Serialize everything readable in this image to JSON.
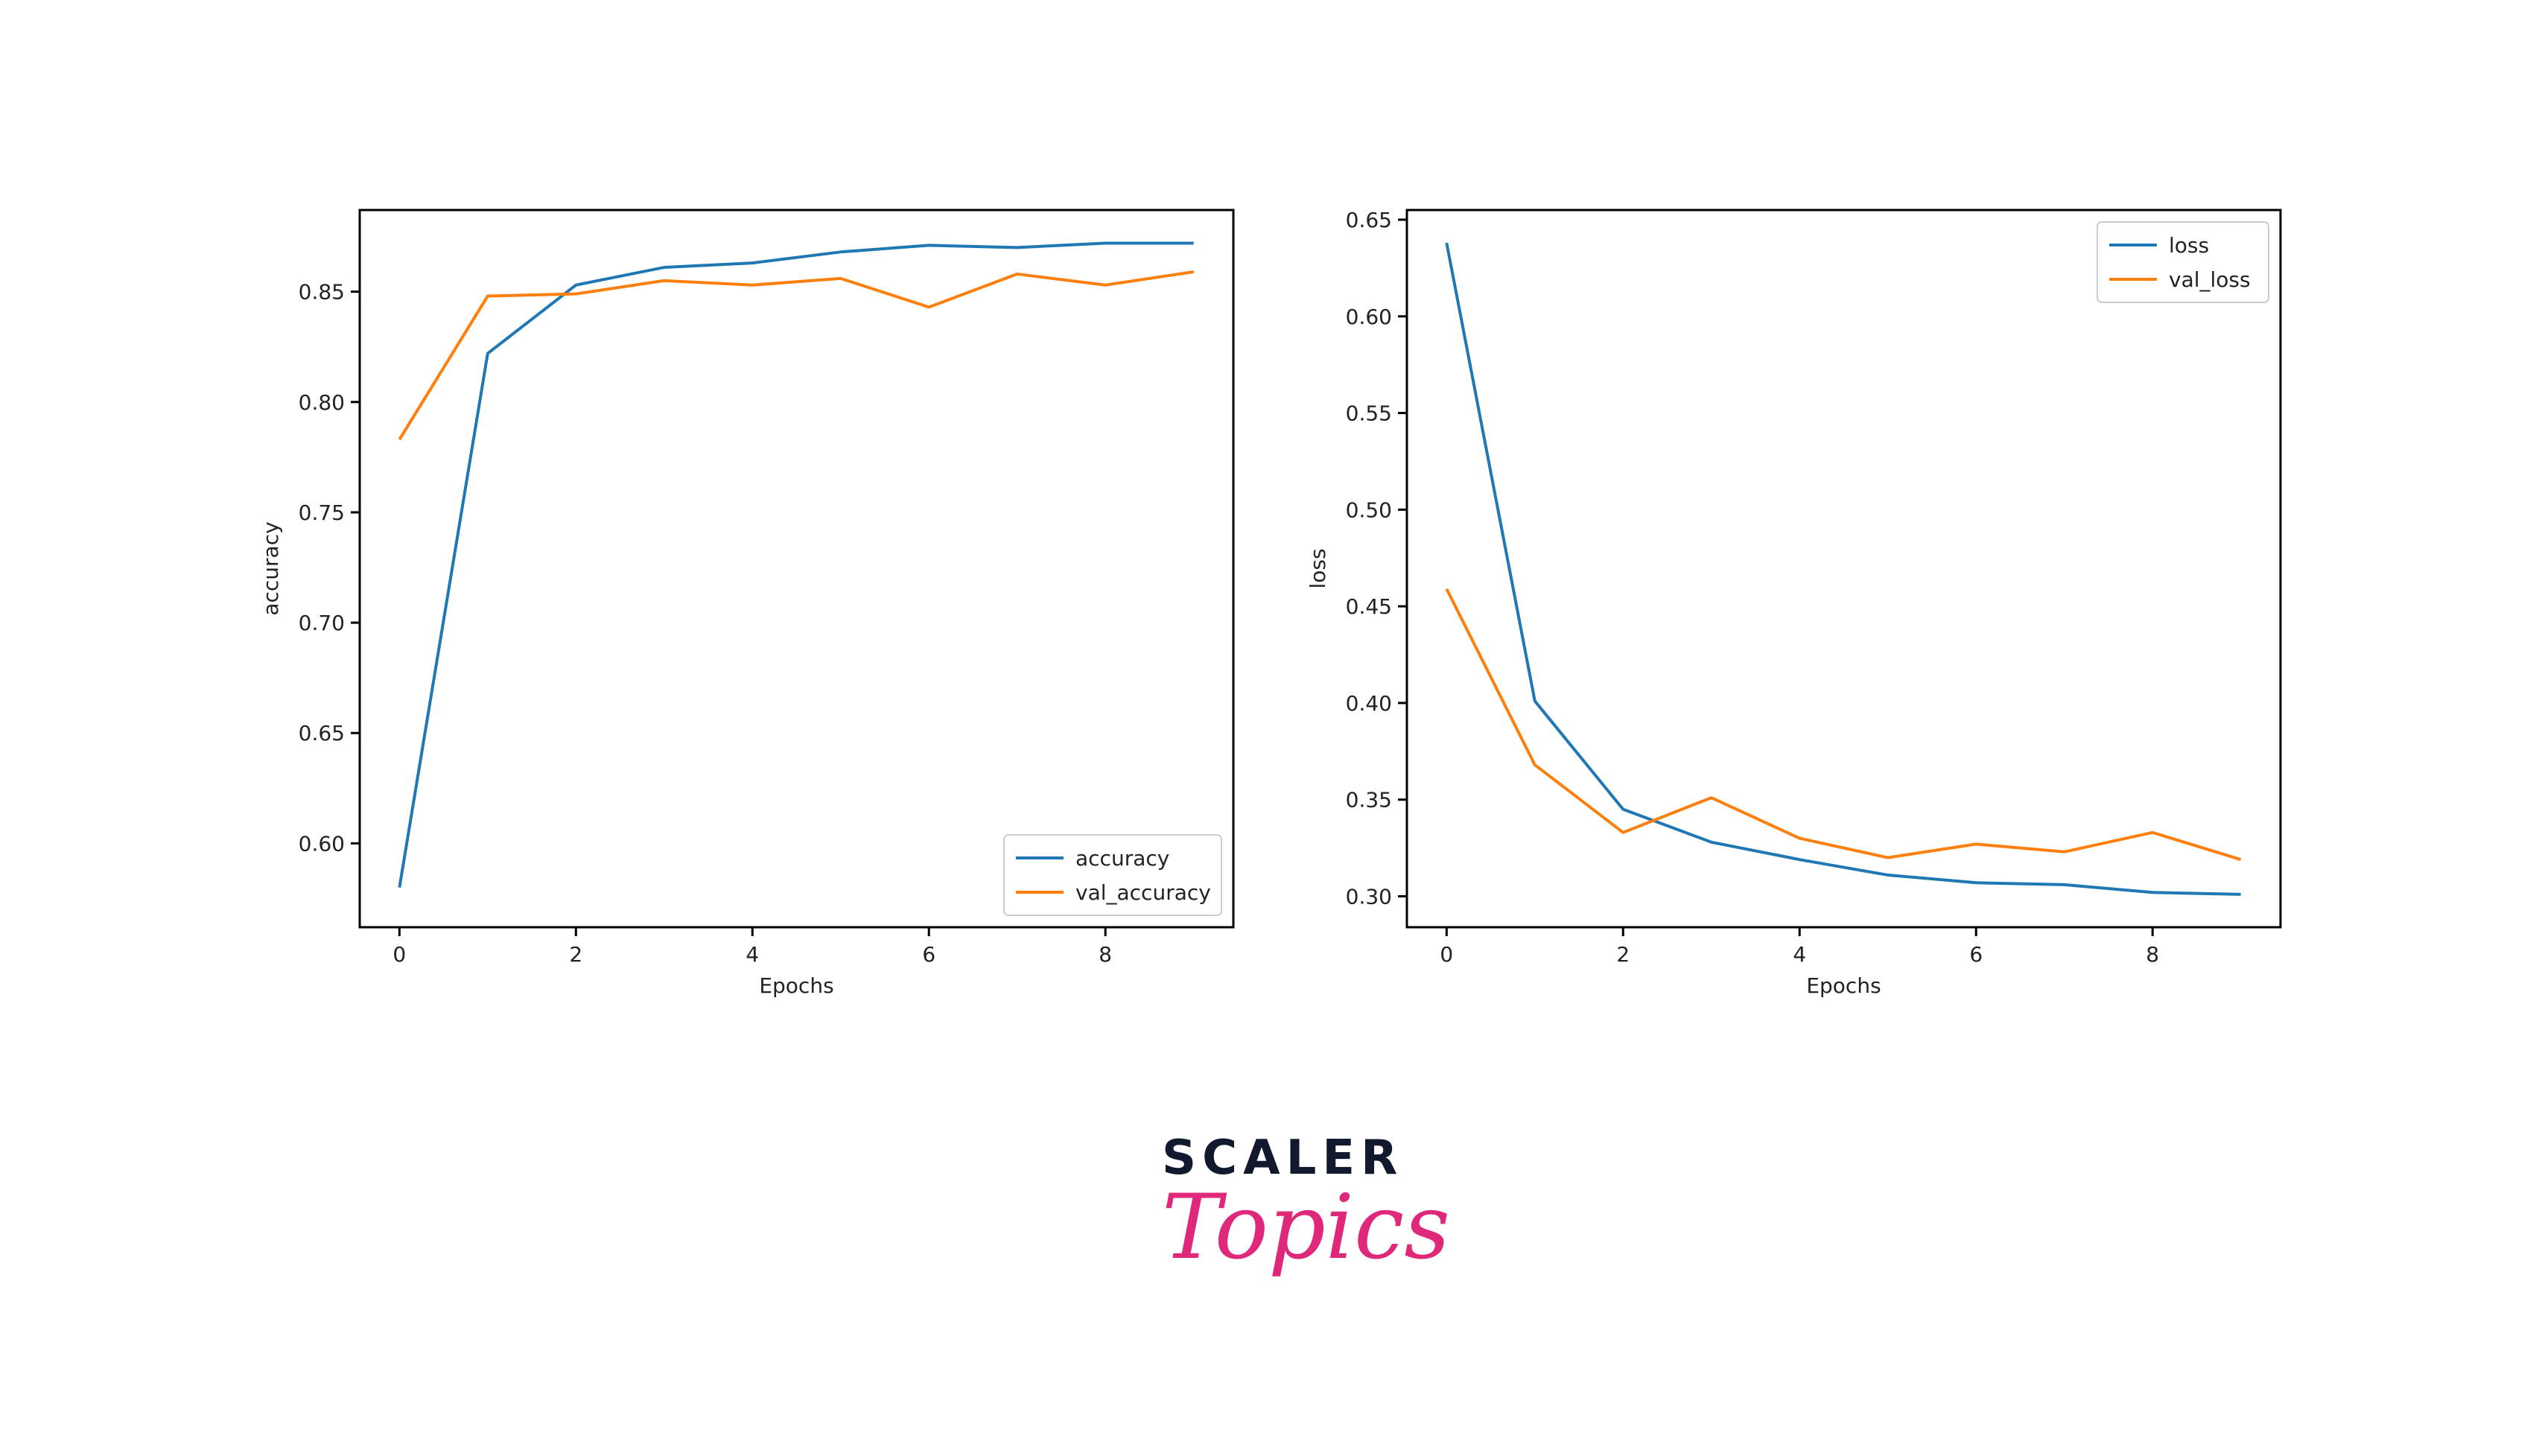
{
  "chart_data": [
    {
      "type": "line",
      "title": "",
      "xlabel": "Epochs",
      "ylabel": "accuracy",
      "xlim": [
        -0.45,
        9.45
      ],
      "ylim": [
        0.562,
        0.887
      ],
      "xticks": [
        0,
        2,
        4,
        6,
        8
      ],
      "yticks": [
        0.6,
        0.65,
        0.7,
        0.75,
        0.8,
        0.85
      ],
      "legend_position": "lower-right",
      "series": [
        {
          "name": "accuracy",
          "color": "#1f77b4",
          "x": [
            0,
            1,
            2,
            3,
            4,
            5,
            6,
            7,
            8,
            9
          ],
          "values": [
            0.58,
            0.822,
            0.853,
            0.861,
            0.863,
            0.868,
            0.871,
            0.87,
            0.872,
            0.872
          ]
        },
        {
          "name": "val_accuracy",
          "color": "#ff7f0e",
          "x": [
            0,
            1,
            2,
            3,
            4,
            5,
            6,
            7,
            8,
            9
          ],
          "values": [
            0.783,
            0.848,
            0.849,
            0.855,
            0.853,
            0.856,
            0.843,
            0.858,
            0.853,
            0.859
          ]
        }
      ]
    },
    {
      "type": "line",
      "title": "",
      "xlabel": "Epochs",
      "ylabel": "loss",
      "xlim": [
        -0.45,
        9.45
      ],
      "ylim": [
        0.284,
        0.655
      ],
      "xticks": [
        0,
        2,
        4,
        6,
        8
      ],
      "yticks": [
        0.3,
        0.35,
        0.4,
        0.45,
        0.5,
        0.55,
        0.6,
        0.65
      ],
      "legend_position": "upper-right",
      "series": [
        {
          "name": "loss",
          "color": "#1f77b4",
          "x": [
            0,
            1,
            2,
            3,
            4,
            5,
            6,
            7,
            8,
            9
          ],
          "values": [
            0.638,
            0.401,
            0.345,
            0.328,
            0.319,
            0.311,
            0.307,
            0.306,
            0.302,
            0.301
          ]
        },
        {
          "name": "val_loss",
          "color": "#ff7f0e",
          "x": [
            0,
            1,
            2,
            3,
            4,
            5,
            6,
            7,
            8,
            9
          ],
          "values": [
            0.459,
            0.368,
            0.333,
            0.351,
            0.33,
            0.32,
            0.327,
            0.323,
            0.333,
            0.319
          ]
        }
      ]
    }
  ],
  "logo": {
    "top": "SCALER",
    "bottom": "Topics"
  }
}
